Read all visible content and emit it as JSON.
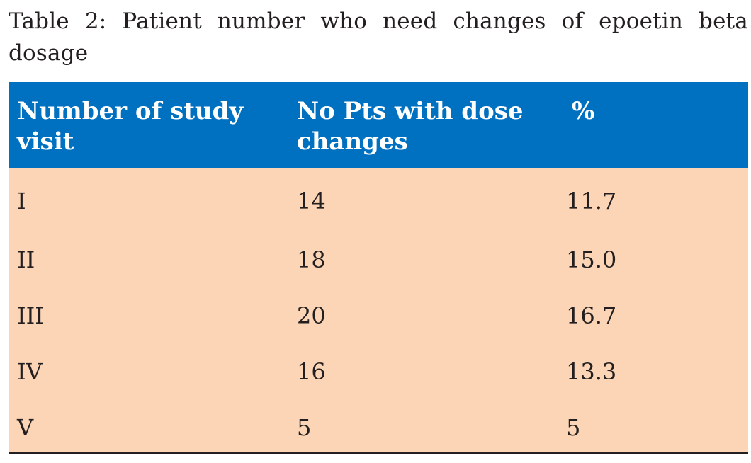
{
  "caption": "Table 2: Patient number who need changes of epoetin beta dosage",
  "table": {
    "headers": [
      "Number of study visit",
      "No Pts with dose changes",
      "%"
    ],
    "rows": [
      {
        "visit": "I",
        "count": "14",
        "percent": "11.7"
      },
      {
        "visit": "II",
        "count": "18",
        "percent": "15.0"
      },
      {
        "visit": "III",
        "count": "20",
        "percent": "16.7"
      },
      {
        "visit": "IV",
        "count": "16",
        "percent": "13.3"
      },
      {
        "visit": "V",
        "count": "5",
        "percent": "5"
      }
    ]
  },
  "colors": {
    "header_bg": "#0070c0",
    "body_bg": "#fbd5b5",
    "text": "#231f20",
    "header_text": "#ffffff"
  }
}
